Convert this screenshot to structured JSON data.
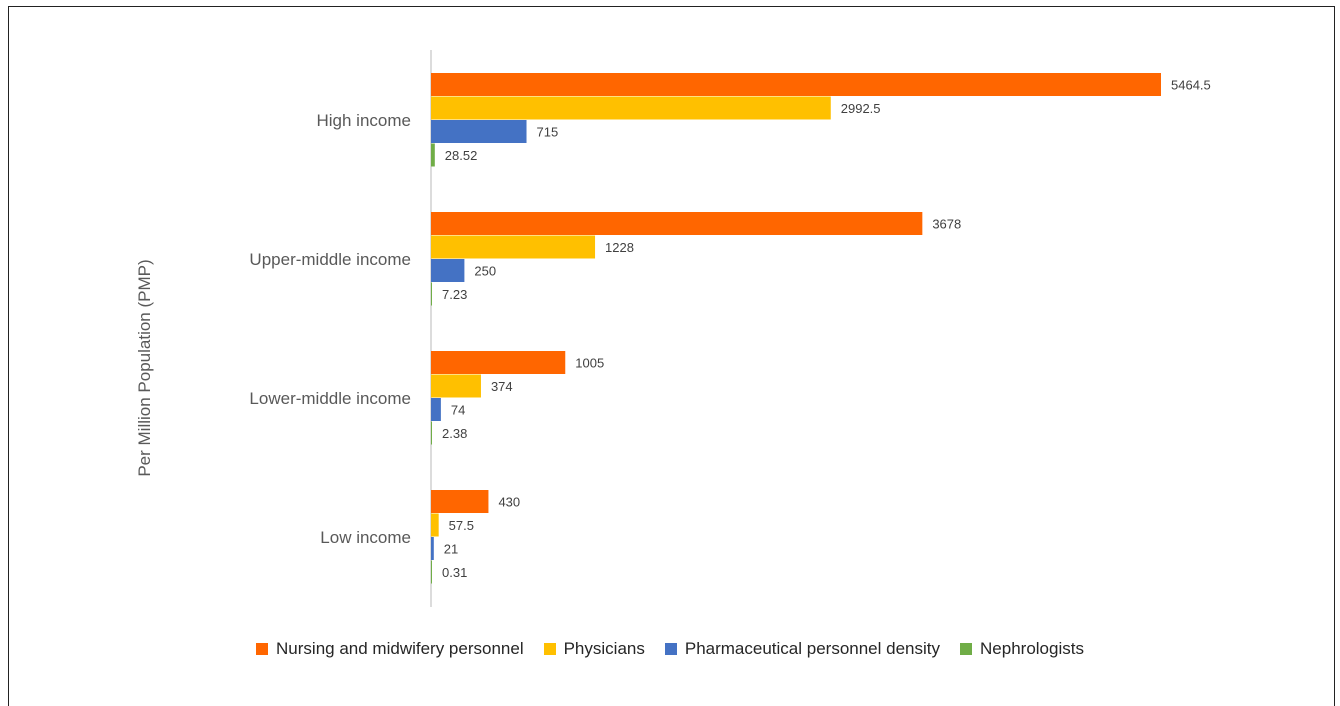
{
  "chart_data": {
    "type": "bar",
    "orientation": "horizontal",
    "ylabel": "Per Million Population (PMP)",
    "xlabel": "",
    "title": "",
    "categories": [
      "High income",
      "Upper-middle income",
      "Lower-middle income",
      "Low income"
    ],
    "series": [
      {
        "name": "Nursing and midwifery personnel",
        "color": "#FF6600",
        "values": [
          5464.5,
          3678,
          1005,
          430
        ],
        "labels": [
          "5464.5",
          "3678",
          "1005",
          "430"
        ]
      },
      {
        "name": "Physicians",
        "color": "#FFC000",
        "values": [
          2992.5,
          1228,
          374,
          57.5
        ],
        "labels": [
          "2992.5",
          "1228",
          "374",
          "57.5"
        ]
      },
      {
        "name": "Pharmaceutical personnel density",
        "color": "#4472C4",
        "values": [
          715,
          250,
          74,
          21
        ],
        "labels": [
          "715",
          "250",
          "74",
          "21"
        ]
      },
      {
        "name": "Nephrologists",
        "color": "#70AD47",
        "values": [
          28.52,
          7.23,
          2.38,
          0.31
        ],
        "labels": [
          "28.52",
          "7.23",
          "2.38",
          "0.31"
        ]
      }
    ],
    "x_axis_visible": false,
    "grid": false,
    "legend_position": "bottom"
  }
}
